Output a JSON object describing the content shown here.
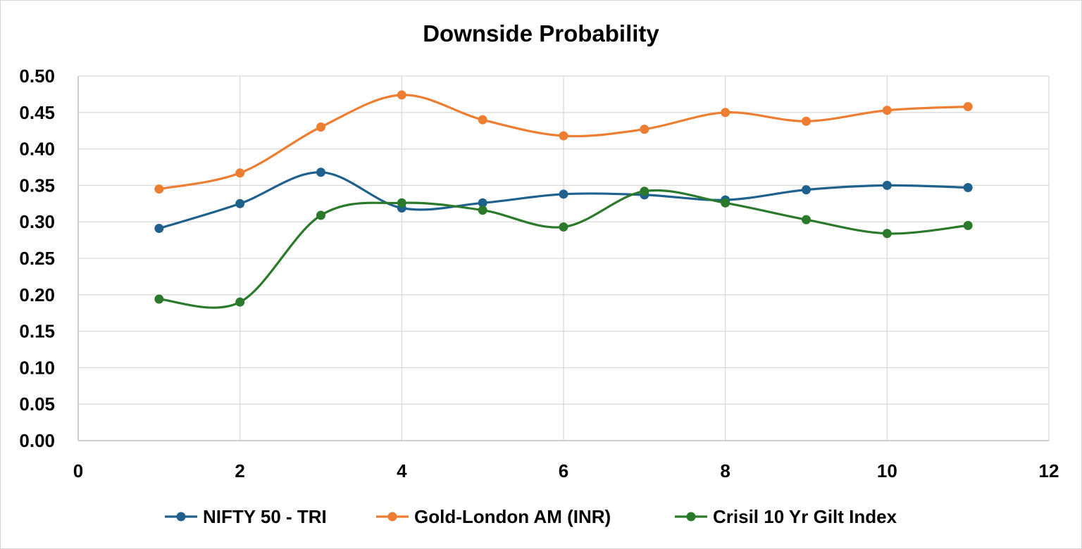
{
  "chart_data": {
    "type": "line",
    "title": "Downside Probability",
    "xlabel": "",
    "ylabel": "",
    "xlim": [
      0,
      12
    ],
    "ylim": [
      0,
      0.5
    ],
    "x_ticks": [
      0,
      2,
      4,
      6,
      8,
      10,
      12
    ],
    "x_tick_labels": [
      "0",
      "2",
      "4",
      "6",
      "8",
      "10",
      "12"
    ],
    "y_ticks": [
      0,
      0.05,
      0.1,
      0.15,
      0.2,
      0.25,
      0.3,
      0.35,
      0.4,
      0.45,
      0.5
    ],
    "y_tick_labels": [
      "0.00",
      "0.05",
      "0.10",
      "0.15",
      "0.20",
      "0.25",
      "0.30",
      "0.35",
      "0.40",
      "0.45",
      "0.50"
    ],
    "grid": true,
    "smooth": true,
    "legend_position": "bottom",
    "x": [
      1,
      2,
      3,
      4,
      5,
      6,
      7,
      8,
      9,
      10,
      11
    ],
    "series": [
      {
        "name": "NIFTY 50 - TRI",
        "color": "#1f618d",
        "values": [
          0.291,
          0.325,
          0.368,
          0.319,
          0.326,
          0.338,
          0.337,
          0.33,
          0.344,
          0.35,
          0.347
        ]
      },
      {
        "name": "Gold-London AM (INR)",
        "color": "#ed7d31",
        "values": [
          0.345,
          0.367,
          0.43,
          0.474,
          0.44,
          0.418,
          0.427,
          0.45,
          0.438,
          0.453,
          0.458
        ]
      },
      {
        "name": "Crisil 10 Yr Gilt Index",
        "color": "#2b7a2b",
        "values": [
          0.194,
          0.19,
          0.309,
          0.326,
          0.316,
          0.293,
          0.342,
          0.326,
          0.303,
          0.284,
          0.295
        ]
      }
    ]
  }
}
